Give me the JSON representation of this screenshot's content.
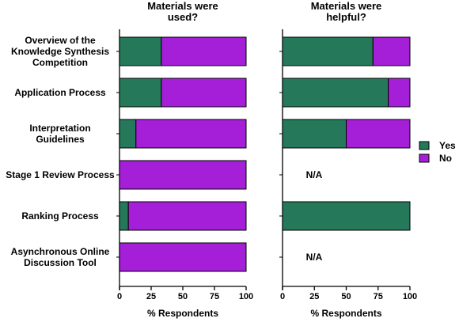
{
  "colors": {
    "yes": "#25795a",
    "no": "#a51fd8"
  },
  "chart_data": [
    {
      "type": "bar",
      "orientation": "horizontal",
      "stacked": true,
      "title": "Materials were used?",
      "title_lines": [
        "Materials were",
        "used?"
      ],
      "categories": [
        "Overview of the Knowledge Synthesis Competition",
        "Application Process",
        "Interpretation Guidelines",
        "Stage 1 Review Process",
        "Ranking Process",
        "Asynchronous Online Discussion Tool"
      ],
      "category_lines": [
        [
          "Overview of the",
          "Knowledge Synthesis",
          "Competition"
        ],
        [
          "Application Process"
        ],
        [
          "Interpretation",
          "Guidelines"
        ],
        [
          "Stage 1 Review Process"
        ],
        [
          "Ranking Process"
        ],
        [
          "Asynchronous Online",
          "Discussion Tool"
        ]
      ],
      "series": [
        {
          "name": "Yes",
          "values": [
            33,
            33,
            13,
            0,
            7,
            0
          ]
        },
        {
          "name": "No",
          "values": [
            67,
            67,
            87,
            100,
            93,
            100
          ]
        }
      ],
      "xlabel": "% Respondents",
      "xlim": [
        0,
        100
      ],
      "xticks": [
        "0",
        "25",
        "50",
        "75",
        "100"
      ],
      "na_labels": []
    },
    {
      "type": "bar",
      "orientation": "horizontal",
      "stacked": true,
      "title": "Materials were helpful?",
      "title_lines": [
        "Materials were",
        "helpful?"
      ],
      "categories": [
        "Overview of the Knowledge Synthesis Competition",
        "Application Process",
        "Interpretation Guidelines",
        "Stage 1 Review Process",
        "Ranking Process",
        "Asynchronous Online Discussion Tool"
      ],
      "series": [
        {
          "name": "Yes",
          "values": [
            71,
            83,
            50,
            null,
            100,
            null
          ]
        },
        {
          "name": "No",
          "values": [
            29,
            17,
            50,
            null,
            0,
            null
          ]
        }
      ],
      "xlabel": "% Respondents",
      "xlim": [
        0,
        100
      ],
      "xticks": [
        "0",
        "25",
        "50",
        "75",
        "100"
      ],
      "na_labels": [
        "N/A",
        "N/A"
      ]
    }
  ],
  "legend": {
    "placement": "right",
    "items": [
      {
        "label": "Yes",
        "color_key": "yes"
      },
      {
        "label": "No",
        "color_key": "no"
      }
    ]
  }
}
